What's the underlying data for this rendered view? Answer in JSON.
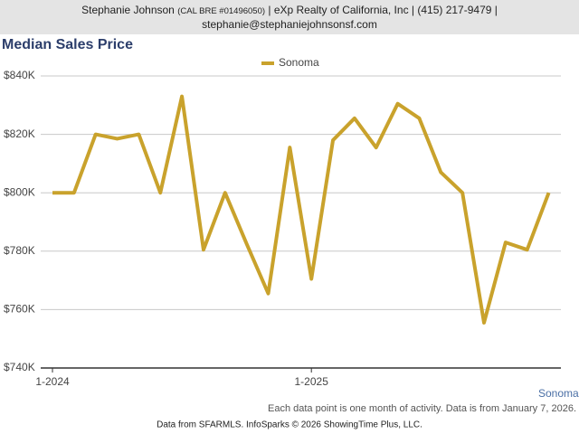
{
  "header": {
    "name": "Stephanie Johnson",
    "license": "(CAL BRE #01496050)",
    "details": "| eXp Realty of California, Inc | (415) 217-9479 |",
    "email": "stephanie@stephaniejohnsonsf.com"
  },
  "chart_data": {
    "type": "line",
    "title": "Median Sales Price",
    "categories": [
      "1-2024",
      null,
      null,
      null,
      null,
      null,
      null,
      null,
      null,
      null,
      null,
      null,
      "1-2025",
      null,
      null,
      null,
      null,
      null,
      null,
      null,
      null,
      null,
      null,
      null
    ],
    "series": [
      {
        "name": "Sonoma",
        "color": "#c9a22c",
        "values": [
          800000,
          800000,
          820000,
          818500,
          820000,
          800000,
          833000,
          780500,
          800000,
          782500,
          765500,
          815500,
          770500,
          818000,
          825500,
          815500,
          830500,
          825500,
          807000,
          800000,
          755500,
          783000,
          780500,
          800000
        ]
      }
    ],
    "ylim": [
      740000,
      840000
    ],
    "yticks": [
      {
        "value": 740000,
        "label": "$740K"
      },
      {
        "value": 760000,
        "label": "$760K"
      },
      {
        "value": 780000,
        "label": "$780K"
      },
      {
        "value": 800000,
        "label": "$800K"
      },
      {
        "value": 820000,
        "label": "$820K"
      },
      {
        "value": 840000,
        "label": "$840K"
      }
    ],
    "grid": true,
    "legend": "top",
    "region_label": "Sonoma",
    "note": "Each data point is one month of activity. Data is from January 7, 2026.",
    "credit": "Data from SFARMLS. InfoSparks © 2026 ShowingTime Plus, LLC."
  }
}
